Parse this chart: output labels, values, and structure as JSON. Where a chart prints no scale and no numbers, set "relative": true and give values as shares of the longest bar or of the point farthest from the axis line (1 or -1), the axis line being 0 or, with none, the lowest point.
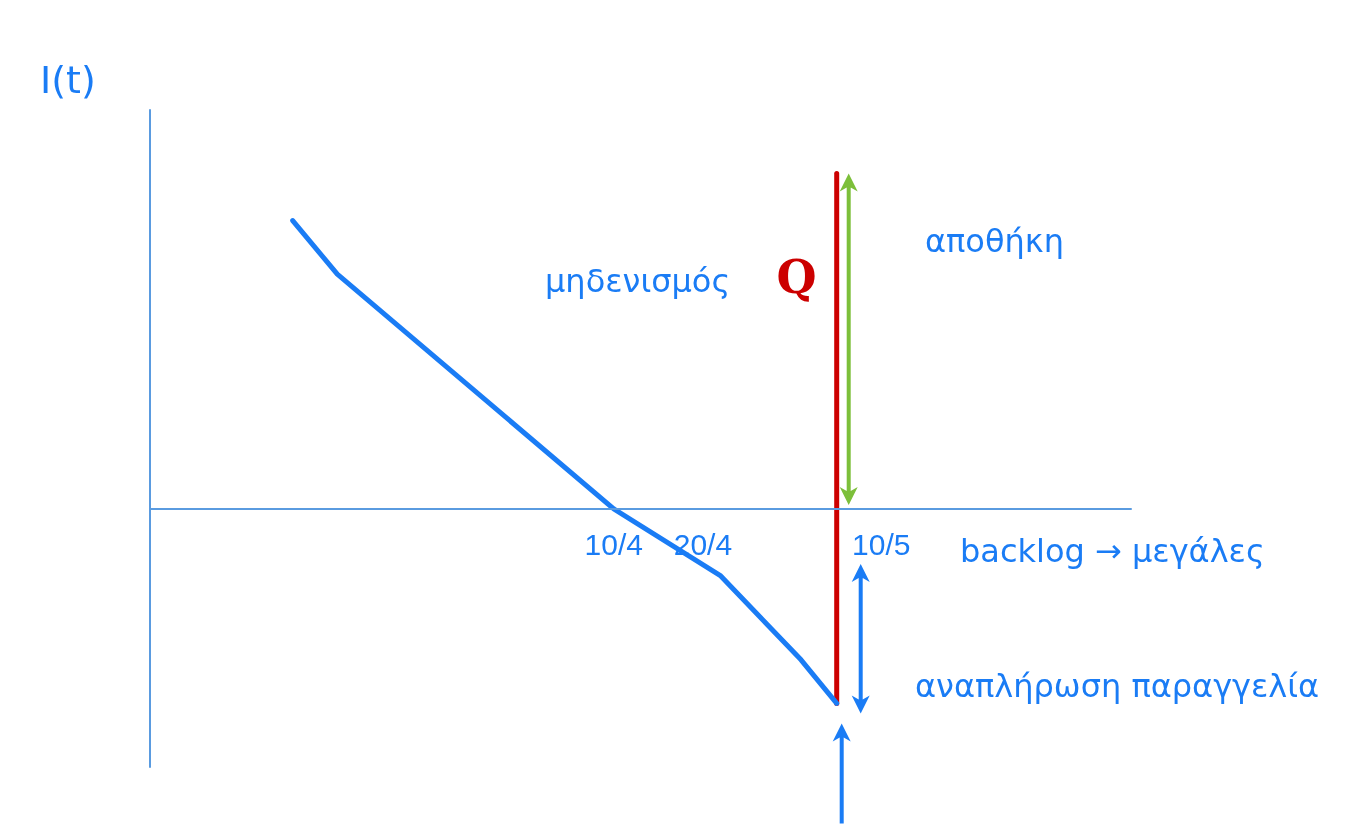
{
  "chart_data": {
    "type": "line",
    "relative": true,
    "ylabel": "I(t)",
    "marker": "none",
    "line_style": "solid",
    "legend": false,
    "grid": false,
    "x": [
      "--03-05",
      "--03-10",
      "--04-10",
      "--04-22",
      "--05-01",
      "--05-05"
    ],
    "xlim": [
      "--02-17",
      "--06-07"
    ],
    "xticks": [
      {
        "value": "--04-10",
        "label": "10/4"
      },
      {
        "value": "--04-20",
        "label": "20/4"
      },
      {
        "value": "--05-10",
        "label": "10/5"
      }
    ],
    "series": [
      {
        "color": "#1a7cf5",
        "values": [
          0.86,
          0.7,
          0,
          -0.2,
          -0.45,
          -0.58
        ]
      },
      {
        "name": "Q",
        "color": "#cc0000",
        "x": [
          "--05-05",
          "--05-05"
        ],
        "values": [
          -0.58,
          1
        ]
      }
    ],
    "annotations": [
      "μηδενισμός",
      "αποθήκη",
      "backlog → μεγάλες",
      "αναπλήρωση παραγγελία"
    ]
  }
}
